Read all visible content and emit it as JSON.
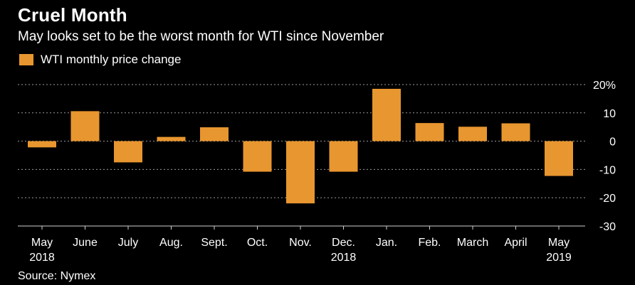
{
  "header": {
    "title": "Cruel Month",
    "subtitle": "May looks set to be the worst month for WTI since November"
  },
  "legend": {
    "label": "WTI monthly price change",
    "color": "#e8962f"
  },
  "footer": {
    "source": "Source: Nymex"
  },
  "colors": {
    "bar": "#e8962f",
    "background": "#000000",
    "grid": "#9a9a9a",
    "text": "#ffffff"
  },
  "chart_data": {
    "type": "bar",
    "categories": [
      "May",
      "June",
      "July",
      "Aug.",
      "Sept.",
      "Oct.",
      "Nov.",
      "Dec.",
      "Jan.",
      "Feb.",
      "March",
      "April",
      "May"
    ],
    "category_sublabels": [
      "2018",
      "",
      "",
      "",
      "",
      "",
      "",
      "2018",
      "",
      "",
      "",
      "",
      "2019"
    ],
    "series": [
      {
        "name": "WTI monthly price change",
        "values": [
          -2.2,
          10.6,
          -7.5,
          1.5,
          4.9,
          -10.8,
          -22.0,
          -10.8,
          18.5,
          6.4,
          5.1,
          6.3,
          -12.3
        ]
      }
    ],
    "ylim": [
      -30,
      20
    ],
    "yticks": [
      20,
      10,
      0,
      -10,
      -20,
      -30
    ],
    "ytick_labels": [
      "20%",
      "10",
      "0",
      "-10",
      "-20",
      "-30"
    ],
    "grid": true,
    "legend_position": "top-left"
  }
}
